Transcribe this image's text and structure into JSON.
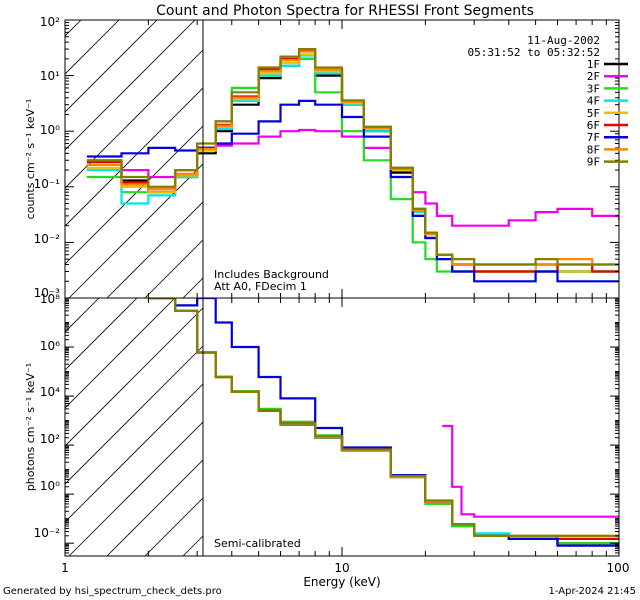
{
  "title": "Count and Photon Spectra for RHESSI Front Segments",
  "date": "11-Aug-2002",
  "time_range": "05:31:52 to 05:32:52",
  "xlabel": "Energy (keV)",
  "footer_left": "Generated by hsi_spectrum_check_dets.pro",
  "footer_right": "1-Apr-2024 21:45",
  "legend": [
    {
      "label": "1F",
      "color": "#000000"
    },
    {
      "label": "2F",
      "color": "#ee00ee"
    },
    {
      "label": "3F",
      "color": "#22dd22"
    },
    {
      "label": "4F",
      "color": "#00e5e5"
    },
    {
      "label": "5F",
      "color": "#e8c000"
    },
    {
      "label": "6F",
      "color": "#ee0000"
    },
    {
      "label": "7F",
      "color": "#0000dd"
    },
    {
      "label": "8F",
      "color": "#ff8800"
    },
    {
      "label": "9F",
      "color": "#808000"
    }
  ],
  "chart_data": [
    {
      "type": "line",
      "panel": "top",
      "title": "Count and Photon Spectra for RHESSI Front Segments",
      "xlabel": "Energy (keV)",
      "ylabel": "counts cm⁻² s⁻¹ keV⁻¹",
      "xscale": "log",
      "yscale": "log",
      "xlim": [
        1,
        100
      ],
      "ylim": [
        0.001,
        100
      ],
      "x_ticks": [
        "1",
        "10",
        "100"
      ],
      "y_ticks": [
        "10⁻³",
        "10⁻²",
        "10⁻¹",
        "10⁰",
        "10¹",
        "10²"
      ],
      "annotations": [
        "Includes Background",
        "Att A0, FDecim 1"
      ],
      "series": [
        {
          "name": "1F",
          "x": [
            1.2,
            1.6,
            2.0,
            2.5,
            3.0,
            3.5,
            4.0,
            5.0,
            6.0,
            7.0,
            8.0,
            10,
            12,
            15,
            18,
            20,
            22,
            25,
            30,
            40,
            50,
            60,
            80,
            100
          ],
          "y": [
            0.25,
            0.13,
            0.08,
            0.15,
            0.4,
            1.0,
            3.0,
            9,
            15,
            20,
            10,
            3,
            1.0,
            0.18,
            0.03,
            0.012,
            0.006,
            0.003,
            0.003,
            0.003,
            0.004,
            0.003,
            0.003,
            0.003
          ]
        },
        {
          "name": "2F",
          "x": [
            1.2,
            1.6,
            2.0,
            2.5,
            3.0,
            3.5,
            4.0,
            5.0,
            6.0,
            7.0,
            8.0,
            10,
            12,
            15,
            18,
            20,
            22,
            25,
            30,
            40,
            50,
            60,
            80,
            100
          ],
          "y": [
            0.3,
            0.2,
            0.15,
            0.2,
            0.5,
            0.55,
            0.6,
            0.8,
            1.0,
            1.05,
            1.0,
            0.8,
            0.5,
            0.2,
            0.08,
            0.05,
            0.03,
            0.02,
            0.02,
            0.025,
            0.035,
            0.04,
            0.03,
            0.025
          ]
        },
        {
          "name": "3F",
          "x": [
            1.2,
            1.6,
            2.0,
            2.5,
            3.0,
            3.5,
            4.0,
            5.0,
            6.0,
            7.0,
            8.0,
            10,
            12,
            15,
            18,
            20,
            22,
            25,
            30,
            40,
            50,
            60,
            80,
            100
          ],
          "y": [
            0.15,
            0.08,
            0.1,
            0.2,
            0.5,
            1.5,
            6,
            10,
            15,
            20,
            5,
            1.0,
            0.3,
            0.06,
            0.01,
            0.005,
            0.003,
            0.004,
            0.003,
            0.003,
            0.003,
            0.003,
            0.003,
            0.003
          ]
        },
        {
          "name": "4F",
          "x": [
            1.2,
            1.6,
            2.0,
            2.5,
            3.0,
            3.5,
            4.0,
            5.0,
            6.0,
            7.0,
            8.0,
            10,
            12,
            15,
            18,
            20,
            22,
            25,
            30,
            40,
            50,
            60,
            80,
            100
          ],
          "y": [
            0.2,
            0.05,
            0.07,
            0.15,
            0.45,
            1.1,
            3.5,
            10,
            15,
            23,
            11,
            3,
            1.0,
            0.2,
            0.035,
            0.014,
            0.005,
            0.004,
            0.004,
            0.004,
            0.003,
            0.003,
            0.003,
            0.004
          ]
        },
        {
          "name": "5F",
          "x": [
            1.2,
            1.6,
            2.0,
            2.5,
            3.0,
            3.5,
            4.0,
            5.0,
            6.0,
            7.0,
            8.0,
            10,
            12,
            15,
            18,
            20,
            22,
            25,
            30,
            40,
            50,
            60,
            80,
            100
          ],
          "y": [
            0.22,
            0.1,
            0.08,
            0.16,
            0.45,
            1.2,
            3.8,
            11,
            17,
            24,
            12,
            3.2,
            1.1,
            0.2,
            0.03,
            0.012,
            0.005,
            0.004,
            0.003,
            0.003,
            0.004,
            0.003,
            0.004,
            0.003
          ]
        },
        {
          "name": "6F",
          "x": [
            1.2,
            1.6,
            2.0,
            2.5,
            3.0,
            3.5,
            4.0,
            5.0,
            6.0,
            7.0,
            8.0,
            10,
            12,
            15,
            18,
            20,
            22,
            25,
            30,
            40,
            50,
            60,
            80,
            100
          ],
          "y": [
            0.28,
            0.12,
            0.09,
            0.17,
            0.5,
            1.3,
            4.2,
            13,
            20,
            28,
            13,
            3.5,
            1.2,
            0.22,
            0.04,
            0.015,
            0.006,
            0.004,
            0.003,
            0.003,
            0.003,
            0.004,
            0.003,
            0.003
          ]
        },
        {
          "name": "7F",
          "x": [
            1.2,
            1.6,
            2.0,
            2.5,
            3.0,
            3.5,
            4.0,
            5.0,
            6.0,
            7.0,
            8.0,
            10,
            12,
            15,
            18,
            20,
            22,
            25,
            30,
            40,
            50,
            60,
            80,
            100
          ],
          "y": [
            0.35,
            0.4,
            0.5,
            0.45,
            0.5,
            0.6,
            0.9,
            1.5,
            3.0,
            3.5,
            3.0,
            1.8,
            0.8,
            0.15,
            0.03,
            0.012,
            0.005,
            0.003,
            0.002,
            0.002,
            0.003,
            0.002,
            0.002,
            0.002
          ]
        },
        {
          "name": "8F",
          "x": [
            1.2,
            1.6,
            2.0,
            2.5,
            3.0,
            3.5,
            4.0,
            5.0,
            6.0,
            7.0,
            8.0,
            10,
            12,
            15,
            18,
            20,
            22,
            25,
            30,
            40,
            50,
            60,
            80,
            100
          ],
          "y": [
            0.25,
            0.11,
            0.09,
            0.17,
            0.48,
            1.25,
            4.0,
            12,
            19,
            27,
            13,
            3.4,
            1.15,
            0.21,
            0.038,
            0.014,
            0.006,
            0.004,
            0.004,
            0.004,
            0.004,
            0.005,
            0.004,
            0.004
          ]
        },
        {
          "name": "9F",
          "x": [
            1.2,
            1.6,
            2.0,
            2.5,
            3.0,
            3.5,
            4.0,
            5.0,
            6.0,
            7.0,
            8.0,
            10,
            12,
            15,
            18,
            20,
            22,
            25,
            30,
            40,
            50,
            60,
            80,
            100
          ],
          "y": [
            0.3,
            0.15,
            0.1,
            0.2,
            0.6,
            1.5,
            5.0,
            14,
            22,
            30,
            14,
            3.6,
            1.2,
            0.22,
            0.04,
            0.015,
            0.006,
            0.005,
            0.004,
            0.004,
            0.005,
            0.004,
            0.004,
            0.004
          ]
        }
      ]
    },
    {
      "type": "line",
      "panel": "bottom",
      "xlabel": "Energy (keV)",
      "ylabel": "photons cm⁻² s⁻¹ keV⁻¹",
      "xscale": "log",
      "yscale": "log",
      "xlim": [
        1,
        100
      ],
      "ylim": [
        0.003,
        100000000
      ],
      "x_ticks": [
        "1",
        "10",
        "100"
      ],
      "y_ticks": [
        "10⁻²",
        "10⁰",
        "10²",
        "10⁴",
        "10⁶",
        "10⁸"
      ],
      "annotations": [
        "Semi-calibrated"
      ],
      "series": [
        {
          "name": "1F",
          "x": [
            2.0,
            2.5,
            3.0,
            3.5,
            4.0,
            5.0,
            6.0,
            8.0,
            10,
            15,
            20,
            25,
            30,
            40,
            60,
            100
          ],
          "y": [
            100000000,
            30000000,
            600000,
            60000,
            15000,
            2500,
            700,
            200,
            60,
            5,
            0.5,
            0.05,
            0.02,
            0.015,
            0.01,
            0.01
          ]
        },
        {
          "name": "2F",
          "x": [
            23,
            25,
            27,
            30,
            40,
            60,
            100
          ],
          "y": [
            600,
            2,
            0.15,
            0.12,
            0.12,
            0.12,
            0.12
          ]
        },
        {
          "name": "3F",
          "x": [
            2.0,
            2.5,
            3.0,
            3.5,
            4.0,
            5.0,
            6.0,
            8.0,
            10,
            15,
            20,
            25,
            30,
            40,
            60,
            100
          ],
          "y": [
            100000000,
            30000000,
            600000,
            60000,
            16000,
            3000,
            900,
            250,
            70,
            5,
            0.4,
            0.05,
            0.02,
            0.015,
            0.01,
            0.01
          ]
        },
        {
          "name": "4F",
          "x": [
            2.0,
            2.5,
            3.0,
            3.5,
            4.0,
            5.0,
            6.0,
            8.0,
            10,
            15,
            20,
            25,
            30,
            40,
            60,
            100
          ],
          "y": [
            100000000,
            30000000,
            600000,
            60000,
            15000,
            2600,
            750,
            210,
            62,
            5,
            0.5,
            0.06,
            0.025,
            0.02,
            0.015,
            0.015
          ]
        },
        {
          "name": "5F",
          "x": [
            2.0,
            2.5,
            3.0,
            3.5,
            4.0,
            5.0,
            6.0,
            8.0,
            10,
            15,
            20,
            25,
            30,
            40,
            60,
            100
          ],
          "y": [
            100000000,
            30000000,
            600000,
            60000,
            15000,
            2600,
            760,
            210,
            62,
            5,
            0.5,
            0.06,
            0.02,
            0.02,
            0.015,
            0.015
          ]
        },
        {
          "name": "6F",
          "x": [
            2.0,
            2.5,
            3.0,
            3.5,
            4.0,
            5.0,
            6.0,
            8.0,
            10,
            15,
            20,
            25,
            30,
            40,
            60,
            100
          ],
          "y": [
            100000000,
            30000000,
            600000,
            60000,
            15000,
            2600,
            780,
            220,
            64,
            5,
            0.5,
            0.06,
            0.02,
            0.015,
            0.015,
            0.015
          ]
        },
        {
          "name": "7F",
          "x": [
            2.0,
            2.5,
            3.0,
            3.5,
            4.0,
            5.0,
            6.0,
            8.0,
            10,
            15,
            20,
            25,
            30,
            40,
            60,
            100
          ],
          "y": [
            100000000,
            50000000,
            100000000,
            10000000,
            1000000,
            60000,
            8000,
            500,
            80,
            6,
            0.5,
            0.06,
            0.02,
            0.015,
            0.008,
            0.006
          ]
        },
        {
          "name": "8F",
          "x": [
            2.0,
            2.5,
            3.0,
            3.5,
            4.0,
            5.0,
            6.0,
            8.0,
            10,
            15,
            20,
            25,
            30,
            40,
            60,
            100
          ],
          "y": [
            100000000,
            30000000,
            600000,
            60000,
            15000,
            2600,
            770,
            215,
            63,
            5,
            0.5,
            0.06,
            0.02,
            0.02,
            0.02,
            0.02
          ]
        },
        {
          "name": "9F",
          "x": [
            2.0,
            2.5,
            3.0,
            3.5,
            4.0,
            5.0,
            6.0,
            8.0,
            10,
            15,
            20,
            25,
            30,
            40,
            60,
            100
          ],
          "y": [
            100000000,
            30000000,
            600000,
            60000,
            15000,
            2700,
            800,
            230,
            66,
            5.5,
            0.55,
            0.06,
            0.02,
            0.02,
            0.02,
            0.02
          ]
        }
      ]
    }
  ]
}
